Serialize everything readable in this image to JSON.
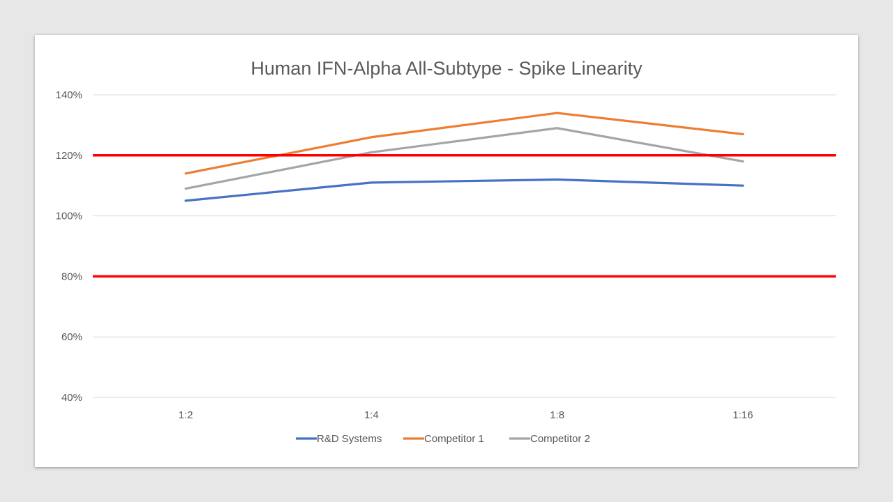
{
  "chart_data": {
    "type": "line",
    "title": "Human IFN-Alpha All-Subtype - Spike Linearity",
    "xlabel": "",
    "ylabel": "",
    "categories": [
      "1:2",
      "1:4",
      "1:8",
      "1:16"
    ],
    "ylim": [
      40,
      140
    ],
    "yticks": [
      40,
      60,
      80,
      100,
      120,
      140
    ],
    "ytick_labels": [
      "40%",
      "60%",
      "80%",
      "100%",
      "120%",
      "140%"
    ],
    "grid": true,
    "legend": "bottom",
    "series": [
      {
        "name": "R&D Systems",
        "color": "#4472c4",
        "values": [
          105,
          111,
          112,
          110
        ]
      },
      {
        "name": "Competitor 1",
        "color": "#ed7d31",
        "values": [
          114,
          126,
          134,
          127
        ]
      },
      {
        "name": "Competitor 2",
        "color": "#a5a5a5",
        "values": [
          109,
          121,
          129,
          118
        ]
      }
    ],
    "reference_lines": [
      {
        "value": 120,
        "color": "#ff0000"
      },
      {
        "value": 80,
        "color": "#ff0000"
      }
    ]
  }
}
